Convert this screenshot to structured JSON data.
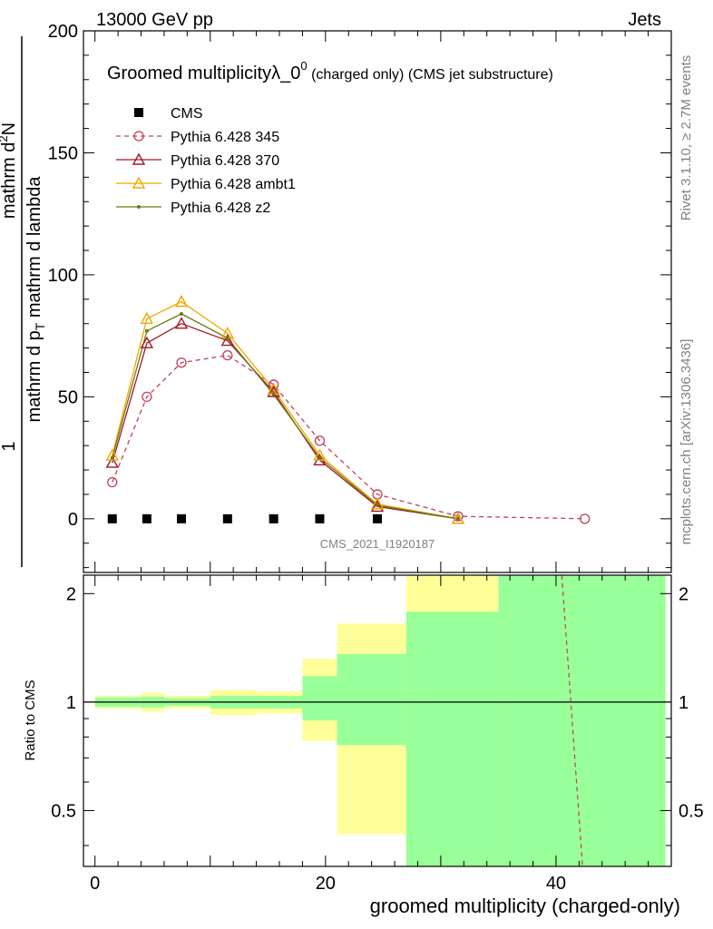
{
  "header": {
    "left": "13000 GeV pp",
    "right": "Jets"
  },
  "side_labels": {
    "rivet": "Rivet 3.1.10, ≥ 2.7M events",
    "mcplots": "mcplots.cern.ch [arXiv:1306.3436]"
  },
  "watermark": "CMS_2021_I1920187",
  "chart_data": [
    {
      "type": "line",
      "title_main": "Groomed multiplicityλ_0",
      "title_sup": "0",
      "title_tail": " (charged only) (CMS jet substructure)",
      "ylabel_line1": "1",
      "ylabel_line2": "mathrm d N / mathrm d p",
      "ylabel_sub2": "T",
      "ylabel_tail2": " mathrm d lambda",
      "ylabel_top": "mathrm d",
      "ylabel_top_sup": "2",
      "ylabel_top_tail": "N",
      "ylabel_bottom": "mathrm d p",
      "ylabel_bottom_sub": "T",
      "ylabel_bottom_tail": " mathrm d lambda",
      "ylim": [
        -22,
        200
      ],
      "xlim": [
        -1,
        50
      ],
      "yticks": [
        0,
        50,
        100,
        150,
        200
      ],
      "ytick_labels": [
        "0",
        "50",
        "100",
        "150",
        "200"
      ],
      "series": [
        {
          "name": "CMS",
          "color": "#000000",
          "style": "points",
          "x": [
            1.5,
            4.5,
            7.5,
            11.5,
            15.5,
            19.5,
            24.5
          ],
          "y": [
            0,
            0,
            0,
            0,
            0,
            0,
            0
          ]
        },
        {
          "name": "Pythia 6.428 345",
          "color": "#c0405a",
          "style": "dashed",
          "marker": "circle",
          "x": [
            1.5,
            4.5,
            7.5,
            11.5,
            15.5,
            19.5,
            24.5,
            31.5,
            42.5
          ],
          "y": [
            15,
            50,
            64,
            67,
            55,
            32,
            10,
            1,
            0
          ]
        },
        {
          "name": "Pythia 6.428 370",
          "color": "#a01828",
          "style": "solid",
          "marker": "triangle",
          "x": [
            1.5,
            4.5,
            7.5,
            11.5,
            15.5,
            19.5,
            24.5,
            31.5
          ],
          "y": [
            23,
            72,
            80,
            73,
            52,
            24,
            5,
            0
          ]
        },
        {
          "name": "Pythia 6.428 ambt1",
          "color": "#f0a800",
          "style": "solid",
          "marker": "triangle",
          "x": [
            1.5,
            4.5,
            7.5,
            11.5,
            15.5,
            19.5,
            24.5,
            31.5
          ],
          "y": [
            26,
            82,
            89,
            76,
            53,
            26,
            6,
            0
          ]
        },
        {
          "name": "Pythia 6.428 z2",
          "color": "#6b7a10",
          "style": "solid",
          "marker": "dot",
          "x": [
            1.5,
            4.5,
            7.5,
            11.5,
            15.5,
            19.5,
            24.5,
            31.5
          ],
          "y": [
            25,
            77,
            84,
            74,
            51,
            25,
            5.5,
            0
          ]
        }
      ]
    },
    {
      "type": "area",
      "ylabel": "Ratio to CMS",
      "xlabel": "groomed multiplicity (charged-only)",
      "xlim": [
        -1,
        50
      ],
      "ylim": [
        0.35,
        2.25
      ],
      "xticks": [
        0,
        20,
        40
      ],
      "xtick_labels": [
        "0",
        "20",
        "40"
      ],
      "yticks": [
        0.5,
        1,
        2
      ],
      "ytick_labels": [
        "0.5",
        "1",
        "2"
      ],
      "bands": {
        "colors": {
          "total": "#ffff99",
          "stat": "#99ff99"
        },
        "bins": [
          {
            "lo": 0,
            "hi": 4,
            "yellow": [
              0.96,
              1.04
            ],
            "green": [
              0.97,
              1.03
            ]
          },
          {
            "lo": 4,
            "hi": 6,
            "yellow": [
              0.94,
              1.06
            ],
            "green": [
              0.965,
              1.035
            ]
          },
          {
            "lo": 6,
            "hi": 10,
            "yellow": [
              0.96,
              1.04
            ],
            "green": [
              0.975,
              1.025
            ]
          },
          {
            "lo": 10,
            "hi": 14,
            "yellow": [
              0.92,
              1.08
            ],
            "green": [
              0.96,
              1.04
            ]
          },
          {
            "lo": 14,
            "hi": 18,
            "yellow": [
              0.93,
              1.07
            ],
            "green": [
              0.96,
              1.04
            ]
          },
          {
            "lo": 18,
            "hi": 21,
            "yellow": [
              0.78,
              1.32
            ],
            "green": [
              0.89,
              1.18
            ]
          },
          {
            "lo": 21,
            "hi": 27,
            "yellow": [
              0.43,
              1.65
            ],
            "green": [
              0.76,
              1.36
            ]
          },
          {
            "lo": 27,
            "hi": 35,
            "yellow": [
              0.35,
              2.25
            ],
            "green": [
              0.35,
              1.78
            ]
          },
          {
            "lo": 35,
            "hi": 49.5,
            "yellow": [
              0.35,
              2.25
            ],
            "green": [
              0.35,
              2.25
            ]
          }
        ]
      },
      "ratio_series": [
        {
          "name": "Pythia 6.428 345",
          "color": "#c0405a",
          "style": "dashed",
          "x": [
            40.5,
            42.3
          ],
          "y": [
            2.25,
            0.35
          ]
        }
      ]
    }
  ]
}
